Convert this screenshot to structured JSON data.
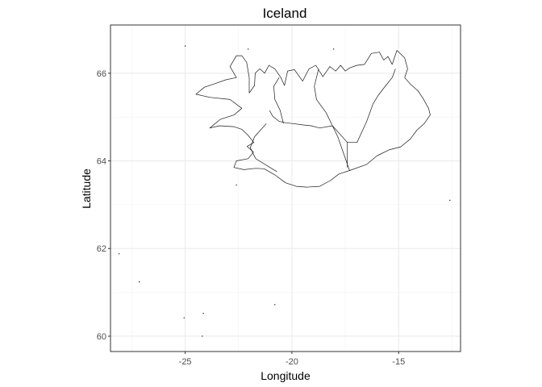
{
  "chart_data": {
    "type": "map",
    "title": "Iceland",
    "xlabel": "Longitude",
    "ylabel": "Latitude",
    "xlim": [
      -28.5,
      -12.1
    ],
    "ylim": [
      59.65,
      67.1
    ],
    "x_major_ticks": [
      -25,
      -20,
      -15
    ],
    "y_major_ticks": [
      60,
      62,
      64,
      66
    ],
    "x_minor_ticks": [
      -27.5,
      -22.5,
      -17.5,
      -12.5
    ],
    "y_minor_ticks": [
      61,
      63,
      65
    ],
    "grid": true,
    "coastline": [
      [
        -22.0,
        65.55
      ],
      [
        -21.75,
        65.72
      ],
      [
        -21.72,
        66.0
      ],
      [
        -21.5,
        66.1
      ],
      [
        -21.28,
        66.0
      ],
      [
        -21.08,
        66.18
      ],
      [
        -20.8,
        66.1
      ],
      [
        -20.52,
        65.9
      ],
      [
        -20.35,
        65.72
      ],
      [
        -20.2,
        66.05
      ],
      [
        -19.88,
        66.08
      ],
      [
        -19.5,
        65.82
      ],
      [
        -19.2,
        66.1
      ],
      [
        -18.88,
        66.18
      ],
      [
        -18.55,
        65.92
      ],
      [
        -18.22,
        66.15
      ],
      [
        -17.95,
        66.05
      ],
      [
        -17.72,
        66.18
      ],
      [
        -17.5,
        66.05
      ],
      [
        -17.3,
        66.12
      ],
      [
        -16.95,
        66.18
      ],
      [
        -16.6,
        66.2
      ],
      [
        -16.28,
        66.45
      ],
      [
        -15.9,
        66.48
      ],
      [
        -15.7,
        66.3
      ],
      [
        -15.5,
        66.38
      ],
      [
        -15.3,
        66.2
      ],
      [
        -15.08,
        66.52
      ],
      [
        -14.72,
        66.35
      ],
      [
        -14.58,
        66.1
      ],
      [
        -14.72,
        65.9
      ],
      [
        -14.45,
        65.75
      ],
      [
        -14.1,
        65.6
      ],
      [
        -13.85,
        65.42
      ],
      [
        -13.6,
        65.2
      ],
      [
        -13.52,
        65.05
      ],
      [
        -13.8,
        64.85
      ],
      [
        -14.15,
        64.7
      ],
      [
        -14.45,
        64.5
      ],
      [
        -14.9,
        64.32
      ],
      [
        -15.45,
        64.25
      ],
      [
        -16.0,
        64.12
      ],
      [
        -16.5,
        63.92
      ],
      [
        -17.3,
        63.78
      ],
      [
        -17.8,
        63.7
      ],
      [
        -18.2,
        63.55
      ],
      [
        -18.7,
        63.42
      ],
      [
        -19.3,
        63.4
      ],
      [
        -19.8,
        63.42
      ],
      [
        -20.3,
        63.5
      ],
      [
        -20.8,
        63.68
      ],
      [
        -21.3,
        63.82
      ],
      [
        -21.7,
        63.83
      ],
      [
        -22.25,
        63.8
      ],
      [
        -22.72,
        63.85
      ],
      [
        -22.6,
        64.0
      ],
      [
        -22.05,
        64.05
      ],
      [
        -21.8,
        64.2
      ],
      [
        -22.1,
        64.33
      ],
      [
        -21.78,
        64.42
      ],
      [
        -22.05,
        64.58
      ],
      [
        -22.35,
        64.72
      ],
      [
        -22.72,
        64.78
      ],
      [
        -23.4,
        64.8
      ],
      [
        -23.85,
        64.75
      ],
      [
        -23.35,
        64.95
      ],
      [
        -22.7,
        65.05
      ],
      [
        -22.35,
        65.2
      ],
      [
        -22.9,
        65.4
      ],
      [
        -23.85,
        65.45
      ],
      [
        -24.5,
        65.52
      ],
      [
        -24.1,
        65.68
      ],
      [
        -23.5,
        65.78
      ],
      [
        -23.1,
        65.85
      ],
      [
        -22.6,
        65.9
      ],
      [
        -22.9,
        66.15
      ],
      [
        -22.6,
        66.4
      ],
      [
        -22.35,
        66.4
      ],
      [
        -22.12,
        66.25
      ],
      [
        -22.0,
        65.9
      ],
      [
        -22.0,
        65.55
      ]
    ],
    "region_boundaries": [
      [
        [
          -21.05,
          65.15
        ],
        [
          -20.9,
          65.02
        ],
        [
          -20.6,
          64.9
        ],
        [
          -20.3,
          64.87
        ],
        [
          -19.95,
          64.85
        ],
        [
          -19.5,
          64.82
        ],
        [
          -19.1,
          64.8
        ],
        [
          -18.7,
          64.75
        ],
        [
          -18.1,
          64.8
        ]
      ],
      [
        [
          -18.1,
          64.8
        ],
        [
          -17.4,
          64.42
        ],
        [
          -16.95,
          64.42
        ],
        [
          -16.5,
          64.9
        ],
        [
          -16.2,
          65.3
        ],
        [
          -15.95,
          65.5
        ],
        [
          -15.6,
          65.72
        ],
        [
          -15.3,
          65.9
        ],
        [
          -15.15,
          66.1
        ]
      ],
      [
        [
          -18.1,
          64.8
        ],
        [
          -18.4,
          65.1
        ],
        [
          -18.85,
          65.4
        ],
        [
          -18.95,
          65.7
        ],
        [
          -18.75,
          66.1
        ]
      ],
      [
        [
          -20.4,
          64.85
        ],
        [
          -20.55,
          65.15
        ],
        [
          -20.8,
          65.4
        ],
        [
          -20.85,
          65.7
        ],
        [
          -20.6,
          65.9
        ]
      ],
      [
        [
          -18.1,
          64.8
        ],
        [
          -17.85,
          64.55
        ],
        [
          -17.3,
          63.78
        ]
      ],
      [
        [
          -17.4,
          64.42
        ],
        [
          -17.4,
          63.85
        ]
      ],
      [
        [
          -21.2,
          64.85
        ],
        [
          -21.75,
          64.55
        ],
        [
          -21.95,
          64.3
        ],
        [
          -21.7,
          64.05
        ],
        [
          -20.7,
          63.75
        ]
      ]
    ],
    "islets": [
      [
        -25.0,
        66.62
      ],
      [
        -22.05,
        66.55
      ],
      [
        -18.05,
        66.55
      ],
      [
        -22.6,
        63.45
      ],
      [
        -28.1,
        61.88
      ],
      [
        -27.15,
        61.24
      ],
      [
        -25.05,
        60.42
      ],
      [
        -24.15,
        60.52
      ],
      [
        -20.8,
        60.72
      ],
      [
        -24.2,
        60.0
      ],
      [
        -12.6,
        63.1
      ]
    ]
  }
}
